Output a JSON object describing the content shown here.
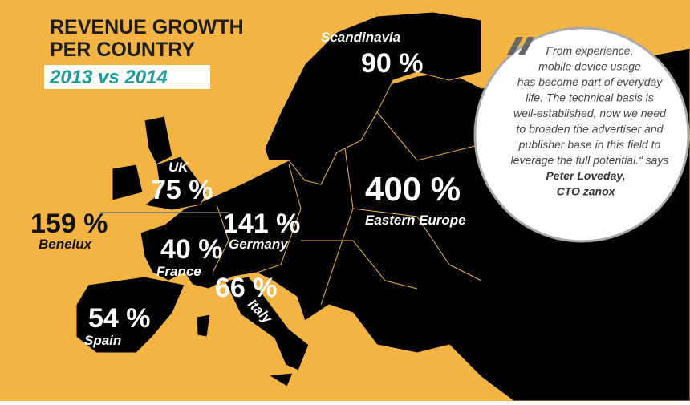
{
  "header": {
    "title": [
      "REVENUE GROWTH",
      "PER COUNTRY"
    ],
    "subtitle": "2013 vs 2014"
  },
  "regions": [
    {
      "name": "Scandinavia",
      "value": "90 %"
    },
    {
      "name": "UK",
      "value": "75 %"
    },
    {
      "name": "Benelux",
      "value": "159 %"
    },
    {
      "name": "Germany",
      "value": "141 %"
    },
    {
      "name": "Eastern Europe",
      "value": "400 %"
    },
    {
      "name": "France",
      "value": "40 %"
    },
    {
      "name": "Italy",
      "value": "66 %"
    },
    {
      "name": "Spain",
      "value": "54 %"
    }
  ],
  "quote": {
    "lines": [
      "From experience,",
      "mobile device usage",
      "has become part of everyday",
      "life. The technical basis is",
      "well-established, now we need",
      "to broaden the advertiser and",
      "publisher base in this field to",
      "leverage the full potential.“ says"
    ],
    "author": "Peter Loveday,",
    "role": "CTO zanox"
  }
}
